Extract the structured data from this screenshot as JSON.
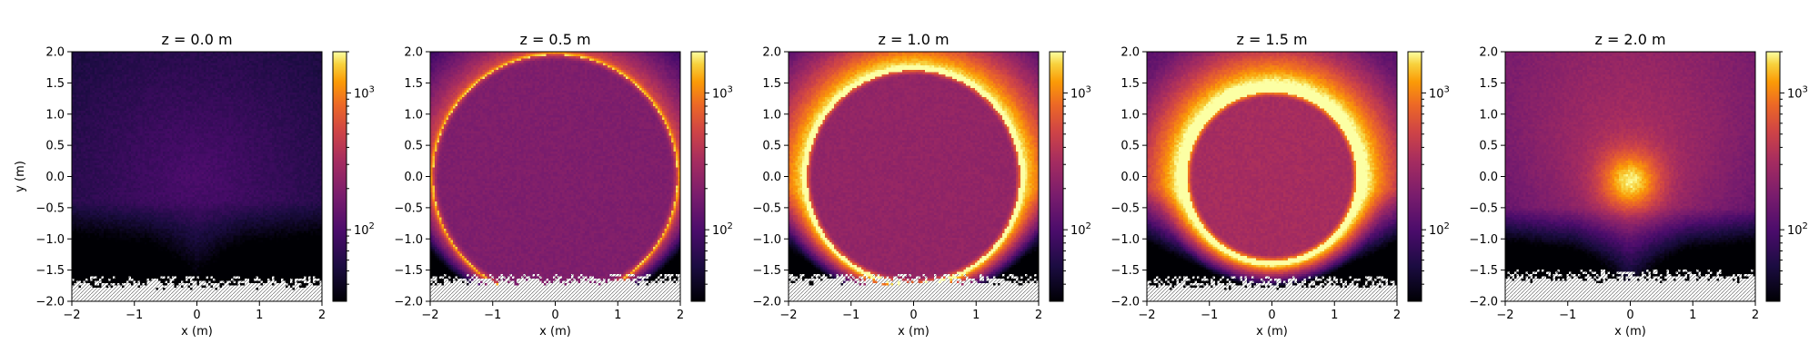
{
  "chart_data": {
    "type": "heatmap",
    "colormap": "inferno",
    "scale": "log",
    "panels": [
      {
        "title": "z = 0.0 m",
        "ring_radius": null,
        "ring_intensity": 0.0,
        "interior_level": 0.28,
        "halo_strength": 0.3,
        "halo_width": 3.0,
        "center_glow": 0.0,
        "empty_below": -1.6
      },
      {
        "title": "z = 0.5 m",
        "ring_radius": 1.95,
        "ring_intensity": 0.22,
        "interior_level": 0.44,
        "halo_strength": 0.3,
        "halo_width": 0.5,
        "center_glow": 0.0,
        "empty_below": -1.55
      },
      {
        "title": "z = 1.0 m",
        "ring_radius": 1.7,
        "ring_intensity": 0.25,
        "interior_level": 0.5,
        "halo_strength": 0.55,
        "halo_width": 0.9,
        "center_glow": 0.0,
        "empty_below": -1.55
      },
      {
        "title": "z = 1.5 m",
        "ring_radius": 1.35,
        "ring_intensity": 0.28,
        "interior_level": 0.56,
        "halo_strength": 0.6,
        "halo_width": 0.9,
        "center_glow": 0.0,
        "empty_below": -1.6
      },
      {
        "title": "z = 2.0 m",
        "ring_radius": null,
        "ring_intensity": 0.0,
        "interior_level": 0.5,
        "halo_strength": 0.0,
        "halo_width": 1.0,
        "center_glow": 0.85,
        "empty_below": -1.5
      }
    ],
    "xlabel": "x (m)",
    "ylabel": "y (m)",
    "xlim": [
      -2,
      2
    ],
    "ylim": [
      -2,
      2
    ],
    "xticks": [
      -2,
      -1,
      0,
      1,
      2
    ],
    "yticks": [
      -2.0,
      -1.5,
      -1.0,
      -0.5,
      0.0,
      0.5,
      1.0,
      1.5,
      2.0
    ],
    "ytick_labels": [
      "-2.0",
      "-1.5",
      "-1.0",
      "-0.5",
      "0.0",
      "0.5",
      "1.0",
      "1.5",
      "2.0"
    ],
    "xtick_labels": [
      "-2",
      "-1",
      "0",
      "1",
      "2"
    ],
    "colorbar": {
      "range": [
        30,
        2000
      ],
      "major_ticks": [
        {
          "value": 100,
          "base": "10",
          "exp": "2"
        },
        {
          "value": 1000,
          "base": "10",
          "exp": "3"
        }
      ],
      "minor_ticks": [
        40,
        50,
        60,
        70,
        80,
        90,
        200,
        300,
        400,
        500,
        600,
        700,
        800,
        900,
        2000
      ]
    }
  }
}
